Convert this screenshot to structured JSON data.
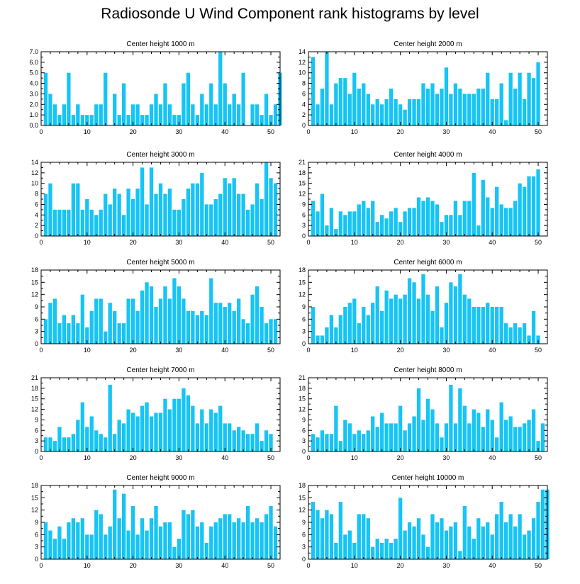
{
  "title": "Radiosonde U Wind Component rank histograms by level",
  "colors": {
    "bar": "#16c4f5",
    "axis": "#000000",
    "background": "#ffffff"
  },
  "chart_data": [
    {
      "type": "bar",
      "title": "Center height 1000 m",
      "xlim": [
        0,
        52
      ],
      "xticks": [
        0,
        10,
        20,
        30,
        40,
        50
      ],
      "ylim": [
        0,
        7
      ],
      "yticks": [
        0,
        1,
        2,
        3,
        4,
        5,
        6,
        7
      ],
      "ytick_labels": [
        "0.0",
        "1.0",
        "2.0",
        "3.0",
        "4.0",
        "5.0",
        "6.0",
        "7.0"
      ],
      "values": [
        5,
        3,
        2,
        1,
        2,
        5,
        1,
        2,
        1,
        1,
        1,
        2,
        2,
        5,
        0,
        3,
        1,
        4,
        1,
        2,
        2,
        1,
        1,
        2,
        3,
        2,
        4,
        2,
        1,
        1,
        4,
        5,
        2,
        1,
        3,
        2,
        4,
        2,
        7,
        4,
        2,
        3,
        2,
        5,
        0,
        2,
        2,
        1,
        3,
        1,
        2,
        5
      ]
    },
    {
      "type": "bar",
      "title": "Center height 2000 m",
      "xlim": [
        0,
        52
      ],
      "xticks": [
        0,
        10,
        20,
        30,
        40,
        50
      ],
      "ylim": [
        0,
        14
      ],
      "yticks": [
        0,
        2,
        4,
        6,
        8,
        10,
        12,
        14
      ],
      "ytick_labels": [
        "0",
        "2",
        "4",
        "6",
        "8",
        "10",
        "12",
        "14"
      ],
      "values": [
        13,
        4,
        7,
        14,
        4,
        8,
        9,
        9,
        6,
        10,
        7,
        8,
        6,
        4,
        5,
        4,
        5,
        7,
        5,
        4,
        3,
        5,
        5,
        5,
        8,
        7,
        8,
        6,
        7,
        11,
        6,
        8,
        7,
        6,
        6,
        6,
        7,
        7,
        10,
        5,
        5,
        8,
        1,
        10,
        7,
        10,
        5,
        10,
        9,
        12,
        0
      ]
    },
    {
      "type": "bar",
      "title": "Center height 3000 m",
      "xlim": [
        0,
        52
      ],
      "xticks": [
        0,
        10,
        20,
        30,
        40,
        50
      ],
      "ylim": [
        0,
        14
      ],
      "yticks": [
        0,
        2,
        4,
        6,
        8,
        10,
        12,
        14
      ],
      "ytick_labels": [
        "0",
        "2",
        "4",
        "6",
        "8",
        "10",
        "12",
        "14"
      ],
      "values": [
        8,
        10,
        5,
        5,
        5,
        5,
        10,
        10,
        5,
        7,
        5,
        4,
        5,
        8,
        6,
        9,
        8,
        4,
        9,
        7,
        9,
        13,
        6,
        13,
        8,
        10,
        8,
        9,
        5,
        5,
        7,
        9,
        10,
        10,
        12,
        6,
        6,
        7,
        8,
        11,
        10,
        11,
        8,
        8,
        5,
        6,
        10,
        7,
        14,
        11,
        10
      ]
    },
    {
      "type": "bar",
      "title": "Center height 4000 m",
      "xlim": [
        0,
        52
      ],
      "xticks": [
        0,
        10,
        20,
        30,
        40,
        50
      ],
      "ylim": [
        0,
        21
      ],
      "yticks": [
        0,
        3,
        6,
        9,
        12,
        15,
        18,
        21
      ],
      "ytick_labels": [
        "0",
        "3",
        "6",
        "9",
        "12",
        "15",
        "18",
        "21"
      ],
      "values": [
        10,
        7,
        12,
        3,
        8,
        2,
        7,
        6,
        7,
        7,
        9,
        10,
        8,
        10,
        4,
        6,
        5,
        7,
        8,
        4,
        7,
        8,
        8,
        11,
        10,
        11,
        10,
        9,
        4,
        6,
        6,
        10,
        6,
        10,
        10,
        18,
        3,
        16,
        11,
        8,
        14,
        9,
        8,
        8,
        10,
        15,
        14,
        17,
        17,
        19,
        0
      ]
    },
    {
      "type": "bar",
      "title": "Center height 5000 m",
      "xlim": [
        0,
        52
      ],
      "xticks": [
        0,
        10,
        20,
        30,
        40,
        50
      ],
      "ylim": [
        0,
        18
      ],
      "yticks": [
        0,
        3,
        6,
        9,
        12,
        15,
        18
      ],
      "ytick_labels": [
        "0",
        "3",
        "6",
        "9",
        "12",
        "15",
        "18"
      ],
      "values": [
        6,
        10,
        11,
        5,
        7,
        5,
        7,
        5,
        12,
        4,
        8,
        11,
        11,
        3,
        10,
        8,
        5,
        5,
        11,
        11,
        8,
        13,
        15,
        14,
        9,
        11,
        14,
        11,
        16,
        14,
        11,
        8,
        8,
        7,
        8,
        7,
        16,
        10,
        10,
        9,
        10,
        8,
        11,
        6,
        5,
        12,
        14,
        9,
        5,
        6,
        6
      ]
    },
    {
      "type": "bar",
      "title": "Center height 6000 m",
      "xlim": [
        0,
        52
      ],
      "xticks": [
        0,
        10,
        20,
        30,
        40,
        50
      ],
      "ylim": [
        0,
        18
      ],
      "yticks": [
        0,
        3,
        6,
        9,
        12,
        15,
        18
      ],
      "ytick_labels": [
        "0",
        "3",
        "6",
        "9",
        "12",
        "15",
        "18"
      ],
      "values": [
        9,
        2,
        2,
        4,
        7,
        4,
        7,
        9,
        10,
        11,
        5,
        9,
        7,
        10,
        14,
        8,
        13,
        11,
        12,
        11,
        12,
        16,
        15,
        11,
        17,
        12,
        8,
        14,
        4,
        10,
        15,
        14,
        17,
        12,
        11,
        9,
        9,
        9,
        10,
        9,
        9,
        9,
        5,
        4,
        5,
        4,
        5,
        2,
        8,
        2,
        0
      ]
    },
    {
      "type": "bar",
      "title": "Center height 7000 m",
      "xlim": [
        0,
        52
      ],
      "xticks": [
        0,
        10,
        20,
        30,
        40,
        50
      ],
      "ylim": [
        0,
        21
      ],
      "yticks": [
        0,
        3,
        6,
        9,
        12,
        15,
        18,
        21
      ],
      "ytick_labels": [
        "0",
        "3",
        "6",
        "9",
        "12",
        "15",
        "18",
        "21"
      ],
      "values": [
        4,
        4,
        3,
        7,
        4,
        4,
        5,
        9,
        14,
        7,
        10,
        6,
        5,
        4,
        19,
        5,
        9,
        8,
        12,
        11,
        10,
        13,
        14,
        10,
        11,
        11,
        15,
        12,
        15,
        15,
        18,
        16,
        13,
        8,
        12,
        8,
        12,
        11,
        13,
        8,
        8,
        6,
        7,
        6,
        5,
        5,
        8,
        3,
        6,
        5,
        0
      ]
    },
    {
      "type": "bar",
      "title": "Center height 8000 m",
      "xlim": [
        0,
        52
      ],
      "xticks": [
        0,
        10,
        20,
        30,
        40,
        50
      ],
      "ylim": [
        0,
        21
      ],
      "yticks": [
        0,
        3,
        6,
        9,
        12,
        15,
        18,
        21
      ],
      "ytick_labels": [
        "0",
        "3",
        "6",
        "9",
        "12",
        "15",
        "18",
        "21"
      ],
      "values": [
        5,
        4,
        6,
        5,
        5,
        13,
        3,
        9,
        8,
        5,
        6,
        5,
        6,
        10,
        7,
        11,
        8,
        8,
        8,
        13,
        6,
        8,
        10,
        18,
        9,
        15,
        12,
        8,
        4,
        8,
        19,
        8,
        18,
        13,
        8,
        12,
        11,
        7,
        12,
        9,
        4,
        14,
        9,
        10,
        7,
        7,
        8,
        9,
        12,
        3,
        8
      ]
    },
    {
      "type": "bar",
      "title": "Center height 9000 m",
      "xlim": [
        0,
        52
      ],
      "xticks": [
        0,
        10,
        20,
        30,
        40,
        50
      ],
      "ylim": [
        0,
        18
      ],
      "yticks": [
        0,
        3,
        6,
        9,
        12,
        15,
        18
      ],
      "ytick_labels": [
        "0",
        "3",
        "6",
        "9",
        "12",
        "15",
        "18"
      ],
      "values": [
        9,
        7,
        5,
        8,
        5,
        9,
        10,
        9,
        10,
        6,
        6,
        12,
        11,
        6,
        8,
        17,
        10,
        16,
        7,
        13,
        6,
        10,
        7,
        10,
        13,
        8,
        9,
        9,
        3,
        5,
        12,
        11,
        12,
        8,
        9,
        4,
        8,
        9,
        10,
        11,
        11,
        9,
        10,
        9,
        13,
        9,
        10,
        9,
        11,
        13,
        8
      ]
    },
    {
      "type": "bar",
      "title": "Center height 10000 m",
      "xlim": [
        0,
        52
      ],
      "xticks": [
        0,
        10,
        20,
        30,
        40,
        50
      ],
      "ylim": [
        0,
        18
      ],
      "yticks": [
        0,
        3,
        6,
        9,
        12,
        15,
        18
      ],
      "ytick_labels": [
        "0",
        "3",
        "6",
        "9",
        "12",
        "15",
        "18"
      ],
      "values": [
        14,
        12,
        10,
        12,
        11,
        4,
        14,
        6,
        7,
        4,
        11,
        11,
        10,
        3,
        5,
        4,
        5,
        4,
        5,
        15,
        7,
        9,
        8,
        10,
        6,
        3,
        11,
        9,
        10,
        7,
        8,
        9,
        2,
        13,
        8,
        5,
        10,
        8,
        9,
        6,
        11,
        14,
        9,
        11,
        8,
        11,
        6,
        7,
        10,
        14,
        17,
        17
      ]
    }
  ]
}
